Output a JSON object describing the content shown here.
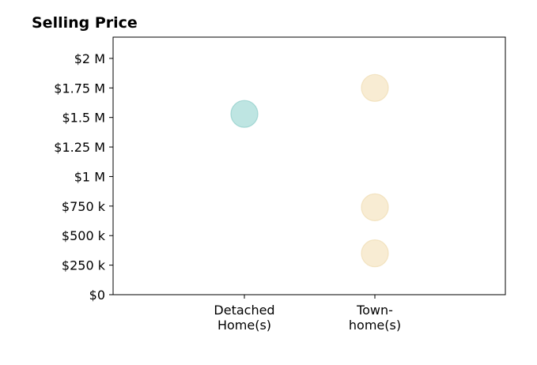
{
  "chart_data": {
    "type": "scatter",
    "title": "Selling Price",
    "xlabel": "",
    "ylabel": "",
    "categories": [
      [
        "Detached",
        "Home(s)"
      ],
      [
        "Town-",
        "home(s)"
      ]
    ],
    "y_ticks": [
      {
        "value": 0,
        "label": "$0"
      },
      {
        "value": 250000,
        "label": "$250 k"
      },
      {
        "value": 500000,
        "label": "$500 k"
      },
      {
        "value": 750000,
        "label": "$750 k"
      },
      {
        "value": 1000000,
        "label": "$1 M"
      },
      {
        "value": 1250000,
        "label": "$1.25 M"
      },
      {
        "value": 1500000,
        "label": "$1.5 M"
      },
      {
        "value": 1750000,
        "label": "$1.75 M"
      },
      {
        "value": 2000000,
        "label": "$2 M"
      }
    ],
    "ylim": [
      0,
      2180000
    ],
    "grid": false,
    "points": [
      {
        "category": 0,
        "value": 1530000,
        "color": "#a8dcd8"
      },
      {
        "category": 1,
        "value": 1750000,
        "color": "#f5e6c4"
      },
      {
        "category": 1,
        "value": 740000,
        "color": "#f5e6c4"
      },
      {
        "category": 1,
        "value": 350000,
        "color": "#f5e6c4"
      }
    ],
    "point_edge_colors": [
      "#7fc7c1",
      "#edd7a6"
    ]
  }
}
